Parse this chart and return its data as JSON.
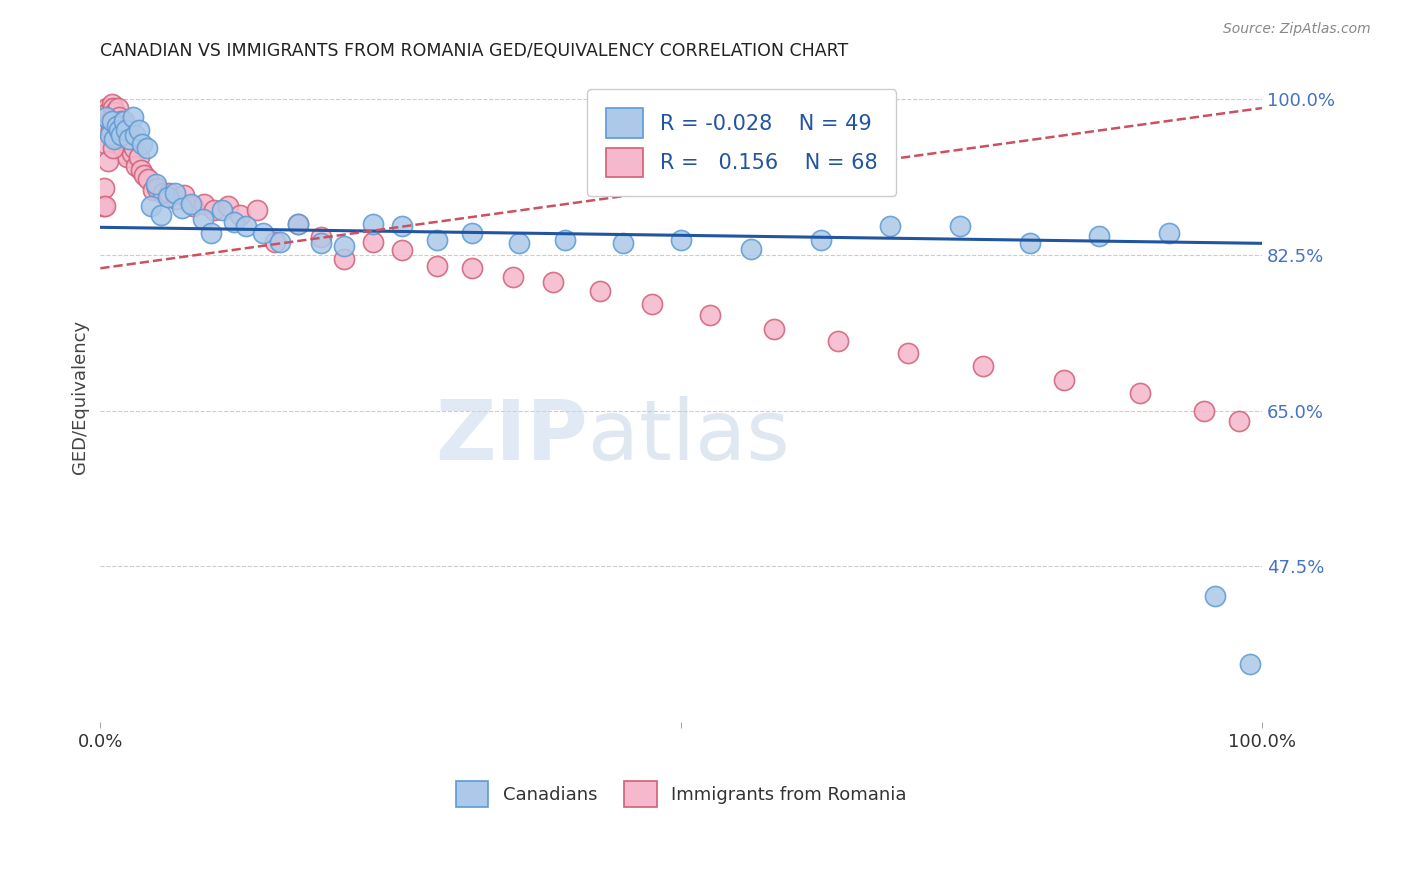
{
  "title": "CANADIAN VS IMMIGRANTS FROM ROMANIA GED/EQUIVALENCY CORRELATION CHART",
  "source": "Source: ZipAtlas.com",
  "ylabel": "GED/Equivalency",
  "xlim": [
    0.0,
    1.0
  ],
  "ylim": [
    0.3,
    1.03
  ],
  "yticks": [
    1.0,
    0.825,
    0.65,
    0.475
  ],
  "ytick_labels": [
    "100.0%",
    "82.5%",
    "65.0%",
    "47.5%"
  ],
  "ytick_color": "#4472c4",
  "grid_color": "#cccccc",
  "background_color": "#ffffff",
  "canadians_color": "#adc8e8",
  "canadians_edge_color": "#5b9bd5",
  "romania_color": "#f5b8cc",
  "romania_edge_color": "#d06078",
  "trend_canadian_color": "#2255a0",
  "trend_romania_color": "#cc5060",
  "legend_R_canadian": "-0.028",
  "legend_N_canadian": "49",
  "legend_R_romania": "0.156",
  "legend_N_romania": "68",
  "watermark_zip": "ZIP",
  "watermark_atlas": "atlas",
  "canadians_x": [
    0.005,
    0.008,
    0.01,
    0.012,
    0.014,
    0.016,
    0.018,
    0.02,
    0.022,
    0.025,
    0.028,
    0.03,
    0.033,
    0.036,
    0.04,
    0.044,
    0.048,
    0.052,
    0.058,
    0.064,
    0.07,
    0.078,
    0.088,
    0.095,
    0.105,
    0.115,
    0.125,
    0.14,
    0.155,
    0.17,
    0.19,
    0.21,
    0.235,
    0.26,
    0.29,
    0.32,
    0.36,
    0.4,
    0.45,
    0.5,
    0.56,
    0.62,
    0.68,
    0.74,
    0.8,
    0.86,
    0.92,
    0.96,
    0.99
  ],
  "canadians_y": [
    0.98,
    0.96,
    0.975,
    0.955,
    0.97,
    0.965,
    0.96,
    0.975,
    0.965,
    0.955,
    0.98,
    0.96,
    0.965,
    0.95,
    0.945,
    0.88,
    0.905,
    0.87,
    0.89,
    0.895,
    0.878,
    0.882,
    0.865,
    0.85,
    0.875,
    0.862,
    0.858,
    0.85,
    0.84,
    0.86,
    0.838,
    0.835,
    0.86,
    0.858,
    0.842,
    0.85,
    0.838,
    0.842,
    0.838,
    0.842,
    0.832,
    0.842,
    0.858,
    0.858,
    0.838,
    0.846,
    0.85,
    0.442,
    0.365
  ],
  "romania_x": [
    0.002,
    0.003,
    0.004,
    0.005,
    0.006,
    0.007,
    0.008,
    0.009,
    0.01,
    0.011,
    0.012,
    0.013,
    0.014,
    0.015,
    0.016,
    0.017,
    0.018,
    0.019,
    0.02,
    0.021,
    0.022,
    0.023,
    0.025,
    0.027,
    0.029,
    0.031,
    0.033,
    0.035,
    0.038,
    0.041,
    0.045,
    0.049,
    0.054,
    0.059,
    0.065,
    0.072,
    0.08,
    0.089,
    0.098,
    0.11,
    0.12,
    0.135,
    0.15,
    0.17,
    0.19,
    0.21,
    0.235,
    0.26,
    0.29,
    0.32,
    0.355,
    0.39,
    0.43,
    0.475,
    0.525,
    0.58,
    0.635,
    0.695,
    0.76,
    0.83,
    0.895,
    0.95,
    0.98,
    0.005,
    0.007,
    0.009,
    0.011,
    0.013
  ],
  "romania_y": [
    0.88,
    0.9,
    0.88,
    0.97,
    0.99,
    0.985,
    0.975,
    0.96,
    0.995,
    0.99,
    0.965,
    0.985,
    0.97,
    0.99,
    0.98,
    0.95,
    0.975,
    0.96,
    0.94,
    0.97,
    0.955,
    0.935,
    0.96,
    0.94,
    0.945,
    0.925,
    0.935,
    0.92,
    0.915,
    0.91,
    0.898,
    0.9,
    0.895,
    0.895,
    0.888,
    0.892,
    0.88,
    0.882,
    0.876,
    0.88,
    0.87,
    0.875,
    0.84,
    0.86,
    0.845,
    0.82,
    0.84,
    0.83,
    0.812,
    0.81,
    0.8,
    0.795,
    0.785,
    0.77,
    0.758,
    0.742,
    0.728,
    0.715,
    0.7,
    0.685,
    0.67,
    0.65,
    0.638,
    0.95,
    0.93,
    0.965,
    0.945,
    0.958
  ]
}
